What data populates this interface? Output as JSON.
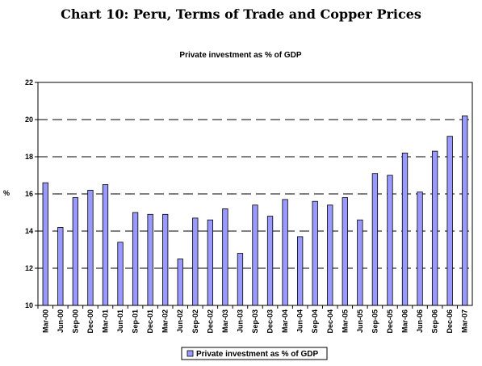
{
  "page": {
    "title": "Chart 10: Peru, Terms of Trade and Copper Prices"
  },
  "chart_data": {
    "type": "bar",
    "title": "Private investment as % of GDP",
    "ylabel": "%",
    "xlabel": "",
    "ylim": [
      10,
      22
    ],
    "yticks": [
      10,
      12,
      14,
      16,
      18,
      20,
      22
    ],
    "grid": "dashed horizontal",
    "legend": "bottom-center",
    "bar_color": "#9999ff",
    "categories": [
      "Mar-00",
      "Jun-00",
      "Sep-00",
      "Dec-00",
      "Mar-01",
      "Jun-01",
      "Sep-01",
      "Dec-01",
      "Mar-02",
      "Jun-02",
      "Sep-02",
      "Dec-02",
      "Mar-03",
      "Jun-03",
      "Sep-03",
      "Dec-03",
      "Mar-04",
      "Jun-04",
      "Sep-04",
      "Dec-04",
      "Mar-05",
      "Jun-05",
      "Sep-05",
      "Dec-05",
      "Mar-06",
      "Jun-06",
      "Sep-06",
      "Dec-06",
      "Mar-07"
    ],
    "series": [
      {
        "name": "Private investment as % of GDP",
        "values": [
          16.6,
          14.2,
          15.8,
          16.2,
          16.5,
          13.4,
          15.0,
          14.9,
          14.9,
          12.5,
          14.7,
          14.6,
          15.2,
          12.8,
          15.4,
          14.8,
          15.7,
          13.7,
          15.6,
          15.4,
          15.8,
          14.6,
          17.1,
          17.0,
          18.2,
          16.1,
          18.3,
          19.1,
          20.2
        ]
      }
    ]
  }
}
